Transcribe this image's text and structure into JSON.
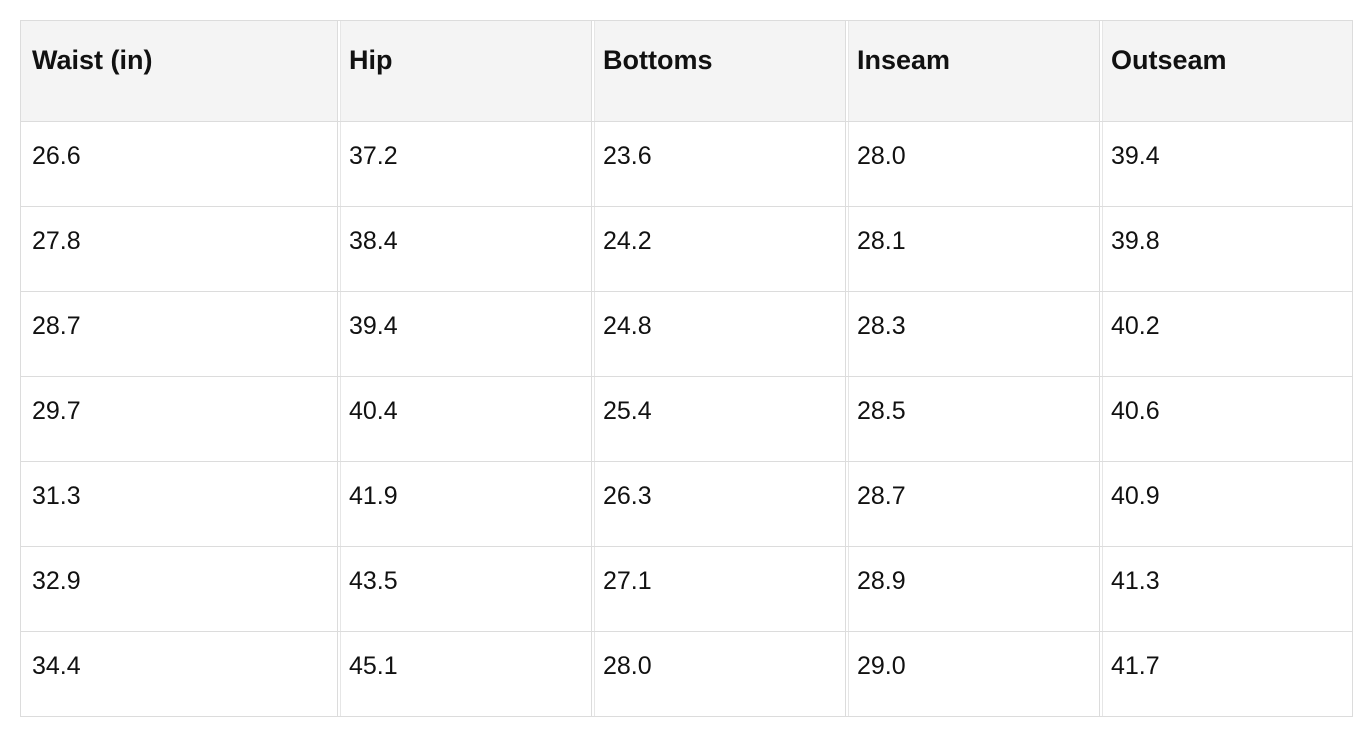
{
  "table": {
    "columns": [
      "Waist (in)",
      "Hip",
      "Bottoms",
      "Inseam",
      "Outseam"
    ],
    "rows": [
      [
        "26.6",
        "37.2",
        "23.6",
        "28.0",
        "39.4"
      ],
      [
        "27.8",
        "38.4",
        "24.2",
        "28.1",
        "39.8"
      ],
      [
        "28.7",
        "39.4",
        "24.8",
        "28.3",
        "40.2"
      ],
      [
        "29.7",
        "40.4",
        "25.4",
        "28.5",
        "40.6"
      ],
      [
        "31.3",
        "41.9",
        "26.3",
        "28.7",
        "40.9"
      ],
      [
        "32.9",
        "43.5",
        "27.1",
        "28.9",
        "41.3"
      ],
      [
        "34.4",
        "45.1",
        "28.0",
        "29.0",
        "41.7"
      ]
    ]
  }
}
